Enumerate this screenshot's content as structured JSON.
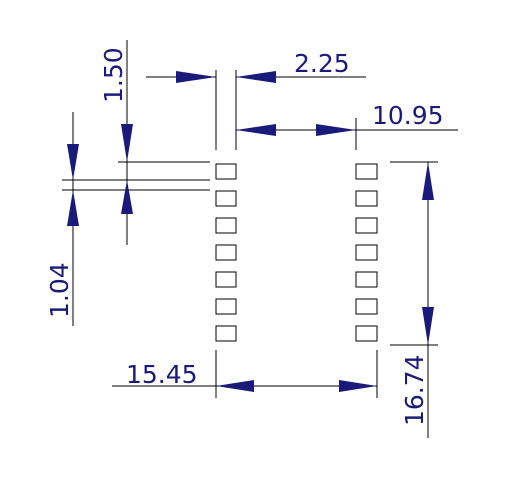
{
  "dimensions": {
    "pad_width": "1.50",
    "pitch_gap": "2.25",
    "inner_span": "10.95",
    "pad_pitch": "1.04",
    "outer_span": "15.45",
    "pad_row_length": "16.74"
  },
  "pads": {
    "rows_per_side": 7
  },
  "colors": {
    "lines": "#000000",
    "arrows_and_text": "#1a1a7a",
    "background": "#ffffff"
  }
}
